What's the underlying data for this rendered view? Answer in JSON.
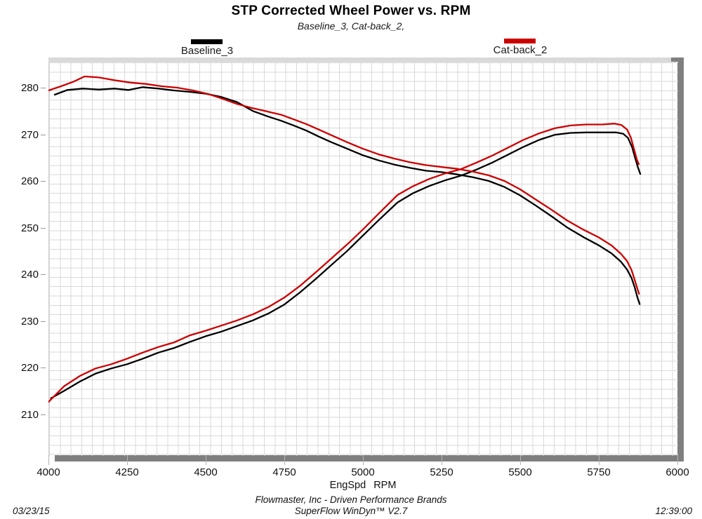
{
  "header": {
    "title": "STP Corrected Wheel Power vs. RPM",
    "subtitle": "Baseline_3, Cat-back_2,"
  },
  "legend": [
    {
      "label": "Baseline_3",
      "color": "#000000"
    },
    {
      "label": "Cat-back_2",
      "color": "#cc0000"
    }
  ],
  "colors": {
    "baseline": "#000000",
    "catback": "#cc0000",
    "grid": "#d9d9d9",
    "scrollbar": "#7f7f7f",
    "scroll_track": "#d9d9d9"
  },
  "chart_data": {
    "type": "line",
    "title": "STP Corrected Wheel Power vs. RPM",
    "xlabel": "EngSpd RPM",
    "ylabel": "",
    "xlim": [
      4000,
      6000
    ],
    "ylim": [
      201,
      285
    ],
    "grid": "fine graph-paper grid, ticks not aligned to grid",
    "legend_position": "top",
    "x_tick_labels": [
      "4000",
      "4250",
      "4500",
      "4750",
      "5000",
      "5250",
      "5500",
      "5750",
      "6000"
    ],
    "y_tick_labels": [
      "280",
      "270",
      "260",
      "250",
      "240",
      "230",
      "220",
      "210"
    ],
    "x_ticks": [
      4000,
      4250,
      4500,
      4750,
      5000,
      5250,
      5500,
      5750,
      6000
    ],
    "y_ticks": [
      280,
      270,
      260,
      250,
      240,
      230,
      220,
      210
    ],
    "series": [
      {
        "name": "Baseline_3 descending trace",
        "color": "#000000",
        "points": [
          [
            4020,
            278.5
          ],
          [
            4060,
            279.5
          ],
          [
            4110,
            279.8
          ],
          [
            4160,
            279.6
          ],
          [
            4210,
            279.8
          ],
          [
            4255,
            279.5
          ],
          [
            4300,
            280.1
          ],
          [
            4350,
            279.8
          ],
          [
            4400,
            279.4
          ],
          [
            4450,
            279.1
          ],
          [
            4500,
            278.7
          ],
          [
            4550,
            278.0
          ],
          [
            4600,
            276.9
          ],
          [
            4650,
            275.0
          ],
          [
            4695,
            273.9
          ],
          [
            4740,
            272.9
          ],
          [
            4780,
            271.9
          ],
          [
            4820,
            270.8
          ],
          [
            4860,
            269.5
          ],
          [
            4900,
            268.3
          ],
          [
            4950,
            266.9
          ],
          [
            5000,
            265.5
          ],
          [
            5050,
            264.4
          ],
          [
            5100,
            263.5
          ],
          [
            5150,
            262.8
          ],
          [
            5200,
            262.2
          ],
          [
            5250,
            261.9
          ],
          [
            5300,
            261.4
          ],
          [
            5350,
            260.8
          ],
          [
            5400,
            260.0
          ],
          [
            5450,
            258.7
          ],
          [
            5500,
            256.9
          ],
          [
            5550,
            254.7
          ],
          [
            5600,
            252.4
          ],
          [
            5650,
            250.0
          ],
          [
            5700,
            248.0
          ],
          [
            5750,
            246.2
          ],
          [
            5790,
            244.5
          ],
          [
            5820,
            242.7
          ],
          [
            5840,
            241.0
          ],
          [
            5854,
            239.2
          ],
          [
            5864,
            237.2
          ],
          [
            5873,
            235.0
          ],
          [
            5880,
            233.6
          ]
        ]
      },
      {
        "name": "Baseline_3 power trace",
        "color": "#000000",
        "points": [
          [
            4008,
            213.4
          ],
          [
            4050,
            215.0
          ],
          [
            4100,
            217.0
          ],
          [
            4150,
            218.7
          ],
          [
            4200,
            219.8
          ],
          [
            4250,
            220.7
          ],
          [
            4300,
            221.9
          ],
          [
            4350,
            223.2
          ],
          [
            4400,
            224.2
          ],
          [
            4450,
            225.5
          ],
          [
            4500,
            226.7
          ],
          [
            4550,
            227.7
          ],
          [
            4600,
            228.9
          ],
          [
            4650,
            230.1
          ],
          [
            4700,
            231.6
          ],
          [
            4750,
            233.5
          ],
          [
            4800,
            236.1
          ],
          [
            4850,
            239.0
          ],
          [
            4900,
            242.0
          ],
          [
            4950,
            245.0
          ],
          [
            5000,
            248.3
          ],
          [
            5050,
            251.6
          ],
          [
            5110,
            255.4
          ],
          [
            5160,
            257.4
          ],
          [
            5210,
            258.9
          ],
          [
            5260,
            260.1
          ],
          [
            5310,
            261.1
          ],
          [
            5360,
            262.4
          ],
          [
            5410,
            263.9
          ],
          [
            5460,
            265.6
          ],
          [
            5510,
            267.3
          ],
          [
            5560,
            268.8
          ],
          [
            5610,
            269.9
          ],
          [
            5660,
            270.3
          ],
          [
            5710,
            270.4
          ],
          [
            5760,
            270.4
          ],
          [
            5805,
            270.4
          ],
          [
            5828,
            270.1
          ],
          [
            5843,
            269.2
          ],
          [
            5856,
            267.2
          ],
          [
            5866,
            264.8
          ],
          [
            5875,
            262.8
          ],
          [
            5882,
            261.5
          ]
        ]
      },
      {
        "name": "Cat-back_2 descending trace",
        "color": "#cc0000",
        "points": [
          [
            4000,
            279.4
          ],
          [
            4040,
            280.3
          ],
          [
            4080,
            281.3
          ],
          [
            4115,
            282.4
          ],
          [
            4160,
            282.2
          ],
          [
            4210,
            281.6
          ],
          [
            4260,
            281.1
          ],
          [
            4310,
            280.8
          ],
          [
            4360,
            280.3
          ],
          [
            4410,
            280.0
          ],
          [
            4460,
            279.4
          ],
          [
            4510,
            278.6
          ],
          [
            4555,
            277.6
          ],
          [
            4600,
            276.5
          ],
          [
            4650,
            275.6
          ],
          [
            4695,
            274.9
          ],
          [
            4740,
            274.2
          ],
          [
            4780,
            273.2
          ],
          [
            4820,
            272.2
          ],
          [
            4860,
            271.0
          ],
          [
            4900,
            269.8
          ],
          [
            4950,
            268.3
          ],
          [
            5000,
            266.9
          ],
          [
            5050,
            265.7
          ],
          [
            5100,
            264.8
          ],
          [
            5150,
            264.0
          ],
          [
            5200,
            263.4
          ],
          [
            5250,
            263.0
          ],
          [
            5300,
            262.6
          ],
          [
            5350,
            262.0
          ],
          [
            5400,
            261.2
          ],
          [
            5450,
            260.0
          ],
          [
            5500,
            258.2
          ],
          [
            5550,
            256.0
          ],
          [
            5600,
            253.8
          ],
          [
            5650,
            251.5
          ],
          [
            5700,
            249.6
          ],
          [
            5750,
            247.9
          ],
          [
            5790,
            246.2
          ],
          [
            5820,
            244.4
          ],
          [
            5840,
            242.8
          ],
          [
            5854,
            240.9
          ],
          [
            5864,
            238.8
          ],
          [
            5872,
            237.0
          ],
          [
            5878,
            235.8
          ]
        ]
      },
      {
        "name": "Cat-back_2 power trace",
        "color": "#cc0000",
        "points": [
          [
            4000,
            212.6
          ],
          [
            4050,
            216.0
          ],
          [
            4100,
            218.2
          ],
          [
            4150,
            219.8
          ],
          [
            4200,
            220.7
          ],
          [
            4250,
            221.9
          ],
          [
            4300,
            223.2
          ],
          [
            4350,
            224.4
          ],
          [
            4400,
            225.4
          ],
          [
            4450,
            226.9
          ],
          [
            4500,
            227.9
          ],
          [
            4550,
            229.0
          ],
          [
            4600,
            230.1
          ],
          [
            4650,
            231.4
          ],
          [
            4700,
            233.0
          ],
          [
            4750,
            235.0
          ],
          [
            4800,
            237.5
          ],
          [
            4850,
            240.4
          ],
          [
            4900,
            243.4
          ],
          [
            4950,
            246.4
          ],
          [
            5000,
            249.6
          ],
          [
            5050,
            253.0
          ],
          [
            5110,
            257.0
          ],
          [
            5160,
            258.9
          ],
          [
            5210,
            260.4
          ],
          [
            5260,
            261.6
          ],
          [
            5310,
            262.5
          ],
          [
            5360,
            263.9
          ],
          [
            5410,
            265.4
          ],
          [
            5460,
            267.1
          ],
          [
            5510,
            268.8
          ],
          [
            5560,
            270.2
          ],
          [
            5610,
            271.3
          ],
          [
            5660,
            271.9
          ],
          [
            5710,
            272.1
          ],
          [
            5760,
            272.1
          ],
          [
            5800,
            272.3
          ],
          [
            5822,
            272.0
          ],
          [
            5840,
            271.0
          ],
          [
            5852,
            269.3
          ],
          [
            5862,
            266.8
          ],
          [
            5871,
            264.6
          ],
          [
            5877,
            263.6
          ]
        ]
      }
    ]
  },
  "x_axis": {
    "title": "EngSpd RPM"
  },
  "footer": {
    "line1": "Flowmaster, Inc - Driven Performance Brands",
    "line2": "SuperFlow WinDyn™ V2.7",
    "date": "03/23/15",
    "time": "12:39:00"
  }
}
